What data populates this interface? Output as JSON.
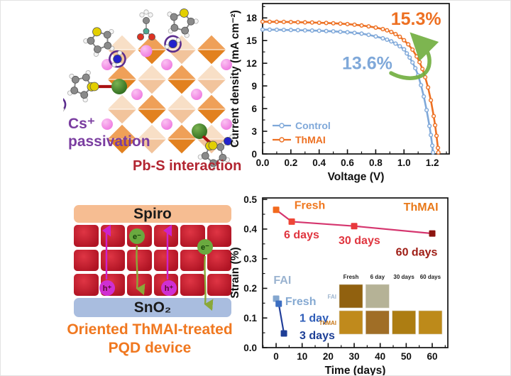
{
  "panel_crystal": {
    "cs_label_line1": "Cs⁺",
    "cs_label_line2": "passivation",
    "pbs_label": "Pb-S interaction",
    "colors": {
      "cs_text": "#7a3da0",
      "pbs_text": "#b22531",
      "octahedron_light_top": "#f8dfc6",
      "octahedron_light_bottom": "#f2c49c",
      "octahedron_dark_top": "#efa058",
      "octahedron_dark_bottom": "#e2811f",
      "cs_ion_light": "#fbc2f2",
      "cs_ion": "#ee7ae0",
      "lead_light": "#7ab352",
      "lead": "#2e6b1e",
      "sulfur": "#e3cf00",
      "carbon": "#8a8a8a",
      "hydrogen": "#f4f4f4",
      "nitrogen": "#2222cc",
      "oxygen": "#dd3322",
      "pbs_bond": "#aa1111",
      "ammonium_circle": "#5b2d8e"
    }
  },
  "panel_device": {
    "spiro": "Spiro",
    "sno2": "SnO₂",
    "electron": "e⁻",
    "hole": "h⁺",
    "caption_line1": "Oriented ThMAI-treated",
    "caption_line2": "PQD device",
    "colors": {
      "spiro_bar": "#f6bd92",
      "sno2_bar": "#a9bddf",
      "qd_center": "#df3544",
      "qd_edge": "#b01424",
      "electron_fill": "#6aa93f",
      "electron_text": "#14420a",
      "hole_fill": "#cf2fd2",
      "hole_text": "#5a0a2a",
      "arrow_up": "#cc22cc",
      "arrow_down": "#8aa838",
      "caption": "#f07820"
    }
  },
  "chart_data": [
    {
      "id": "jv-chart",
      "type": "line",
      "title": "",
      "xlabel": "Voltage (V)",
      "ylabel": "Current density (mA cm⁻²)",
      "xlim": [
        0,
        1.32
      ],
      "ylim": [
        0,
        19.9
      ],
      "xticks": [
        "0.0",
        "0.2",
        "0.4",
        "0.6",
        "0.8",
        "1.0",
        "1.2"
      ],
      "yticks": [
        "0",
        "3",
        "6",
        "9",
        "12",
        "15",
        "18"
      ],
      "x_minor": 0.1,
      "y_minor": 1.5,
      "grid": false,
      "legend_position": "bottom-left",
      "series": [
        {
          "name": "Control",
          "color": "#7fa8d9",
          "marker": "circle",
          "points": [
            [
              0,
              16.45
            ],
            [
              0.05,
              16.44
            ],
            [
              0.1,
              16.43
            ],
            [
              0.15,
              16.41
            ],
            [
              0.2,
              16.4
            ],
            [
              0.25,
              16.38
            ],
            [
              0.3,
              16.35
            ],
            [
              0.35,
              16.33
            ],
            [
              0.4,
              16.3
            ],
            [
              0.45,
              16.26
            ],
            [
              0.5,
              16.22
            ],
            [
              0.55,
              16.16
            ],
            [
              0.6,
              16.1
            ],
            [
              0.65,
              16.02
            ],
            [
              0.7,
              15.92
            ],
            [
              0.75,
              15.76
            ],
            [
              0.8,
              15.55
            ],
            [
              0.85,
              15.3
            ],
            [
              0.88,
              15.12
            ],
            [
              0.91,
              14.9
            ],
            [
              0.94,
              14.6
            ],
            [
              0.97,
              14.25
            ],
            [
              1.0,
              13.85
            ],
            [
              1.02,
              13.3
            ],
            [
              1.04,
              12.75
            ],
            [
              1.06,
              12.1
            ],
            [
              1.08,
              11.35
            ],
            [
              1.1,
              10.4
            ],
            [
              1.12,
              9.1
            ],
            [
              1.14,
              7.6
            ],
            [
              1.16,
              5.8
            ],
            [
              1.18,
              3.7
            ],
            [
              1.19,
              2.5
            ],
            [
              1.2,
              1.1
            ],
            [
              1.205,
              0.2
            ]
          ]
        },
        {
          "name": "ThMAI",
          "color": "#ed7022",
          "marker": "circle",
          "points": [
            [
              0,
              17.5
            ],
            [
              0.05,
              17.49
            ],
            [
              0.1,
              17.48
            ],
            [
              0.15,
              17.47
            ],
            [
              0.2,
              17.45
            ],
            [
              0.25,
              17.43
            ],
            [
              0.3,
              17.41
            ],
            [
              0.35,
              17.39
            ],
            [
              0.4,
              17.36
            ],
            [
              0.45,
              17.33
            ],
            [
              0.5,
              17.29
            ],
            [
              0.55,
              17.24
            ],
            [
              0.6,
              17.18
            ],
            [
              0.65,
              17.1
            ],
            [
              0.7,
              17.0
            ],
            [
              0.75,
              16.88
            ],
            [
              0.8,
              16.72
            ],
            [
              0.85,
              16.52
            ],
            [
              0.88,
              16.36
            ],
            [
              0.91,
              16.14
            ],
            [
              0.94,
              15.86
            ],
            [
              0.97,
              15.5
            ],
            [
              1.0,
              15.05
            ],
            [
              1.03,
              14.5
            ],
            [
              1.06,
              13.8
            ],
            [
              1.09,
              12.9
            ],
            [
              1.11,
              12.15
            ],
            [
              1.13,
              11.25
            ],
            [
              1.15,
              10.15
            ],
            [
              1.17,
              8.8
            ],
            [
              1.19,
              7.1
            ],
            [
              1.21,
              5.0
            ],
            [
              1.22,
              3.8
            ],
            [
              1.23,
              2.4
            ],
            [
              1.24,
              0.8
            ],
            [
              1.243,
              0.2
            ]
          ]
        }
      ],
      "annotations": [
        {
          "text": "15.3%",
          "x": 1.085,
          "y": 17.1,
          "color": "#ed7022",
          "size": 25,
          "anchor": "middle"
        },
        {
          "text": "13.6%",
          "x": 0.74,
          "y": 11.2,
          "color": "#7fa8d9",
          "size": 25,
          "anchor": "middle"
        }
      ],
      "arrow_color": "#6fae3e",
      "efficiency_control": "13.6%",
      "efficiency_thmai": "15.3%"
    },
    {
      "id": "strain-chart",
      "type": "scatter-line",
      "title": "",
      "xlabel": "Time (days)",
      "ylabel": "Strain (%)",
      "xlim": [
        -5.2,
        66
      ],
      "ylim": [
        0,
        0.505
      ],
      "xticks": [
        "0",
        "10",
        "20",
        "30",
        "40",
        "50",
        "60"
      ],
      "yticks": [
        "0.0",
        "0.1",
        "0.2",
        "0.3",
        "0.4",
        "0.5"
      ],
      "x_minor": 5,
      "y_minor": 0.05,
      "grid": false,
      "series": [
        {
          "name": "ThMAI",
          "line_color": "#d5356e",
          "marker": "square",
          "points": [
            [
              0,
              0.465
            ],
            [
              6,
              0.425
            ],
            [
              30,
              0.41
            ],
            [
              60,
              0.385
            ]
          ],
          "point_colors": [
            "#f26a1e",
            "#ee4636",
            "#e8393c",
            "#8c1510"
          ]
        },
        {
          "name": "FAI",
          "line_color": "#223f9a",
          "marker": "square",
          "points": [
            [
              0,
              0.165
            ],
            [
              1,
              0.148
            ],
            [
              3,
              0.048
            ]
          ],
          "point_colors": [
            "#84a7cf",
            "#3c6ec2",
            "#1e3e96"
          ]
        }
      ],
      "annotations": [
        {
          "text": "Fresh",
          "x": 7,
          "y": 0.468,
          "color": "#f07820",
          "size": 16,
          "anchor": "start"
        },
        {
          "text": "6 days",
          "x": 3,
          "y": 0.368,
          "color": "#e0353f",
          "size": 16,
          "anchor": "start"
        },
        {
          "text": "30 days",
          "x": 24,
          "y": 0.35,
          "color": "#e0353f",
          "size": 16,
          "anchor": "start"
        },
        {
          "text": "ThMAI",
          "x": 49,
          "y": 0.462,
          "color": "#e87818",
          "size": 16,
          "anchor": "start"
        },
        {
          "text": "60 days",
          "x": 46,
          "y": 0.31,
          "color": "#9e1c14",
          "size": 16,
          "anchor": "start"
        },
        {
          "text": "FAI",
          "x": -1,
          "y": 0.216,
          "color": "#9ab3d0",
          "size": 16,
          "anchor": "start"
        },
        {
          "text": "Fresh",
          "x": 3.5,
          "y": 0.144,
          "color": "#85a9d2",
          "size": 16,
          "anchor": "start"
        },
        {
          "text": "1 day",
          "x": 9,
          "y": 0.087,
          "color": "#2d5cb8",
          "size": 16,
          "anchor": "start"
        },
        {
          "text": "3 days",
          "x": 9,
          "y": 0.029,
          "color": "#1d3f96",
          "size": 16,
          "anchor": "start"
        }
      ],
      "inset": {
        "col_headers": [
          "Fresh",
          "6 day",
          "30 days",
          "60 days"
        ],
        "rows": [
          {
            "label": "FAI",
            "label_color": "#9fb6cf",
            "photos": [
              "#91610f",
              "#b5b296",
              null,
              null
            ]
          },
          {
            "label": "ThMAI",
            "label_color": "#c87818",
            "photos": [
              "#c08a1c",
              "#a06e26",
              "#ad7d12",
              "#bd8a1a"
            ]
          }
        ]
      }
    }
  ]
}
